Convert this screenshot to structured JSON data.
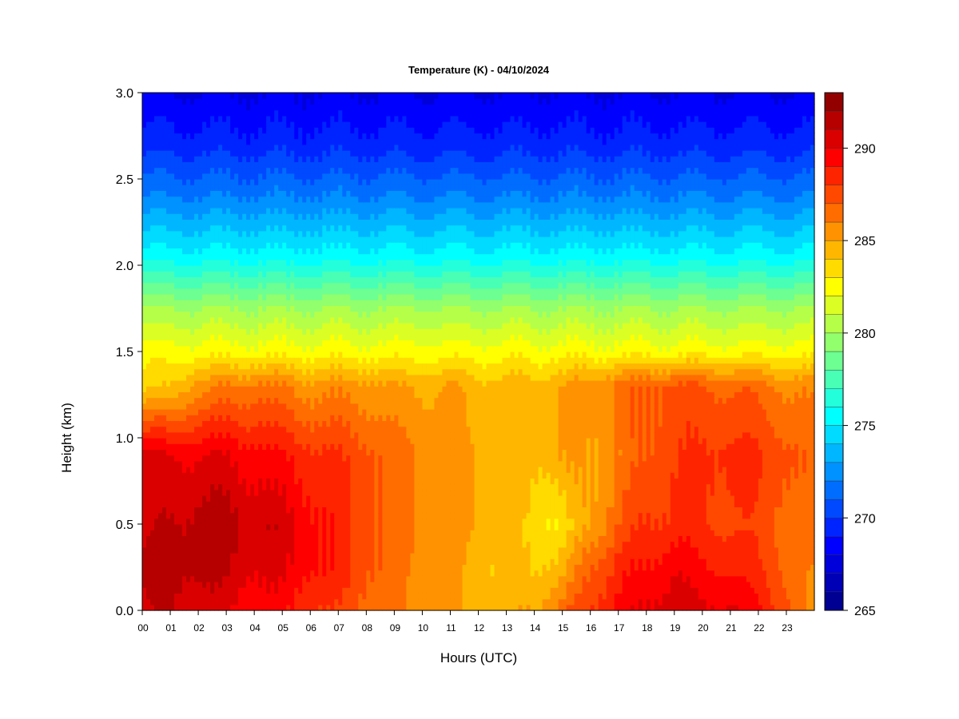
{
  "chart_data": {
    "type": "heatmap",
    "title": "Temperature (K) - 04/10/2024",
    "xlabel": "Hours (UTC)",
    "ylabel": "Height (km)",
    "xlim": [
      0,
      24
    ],
    "ylim": [
      0.0,
      3.0
    ],
    "x_ticks": [
      "00",
      "01",
      "02",
      "03",
      "04",
      "05",
      "06",
      "07",
      "08",
      "09",
      "10",
      "11",
      "12",
      "13",
      "14",
      "15",
      "16",
      "17",
      "18",
      "19",
      "20",
      "21",
      "22",
      "23"
    ],
    "y_ticks": [
      "0.0",
      "0.5",
      "1.0",
      "1.5",
      "2.0",
      "2.5",
      "3.0"
    ],
    "colorbar": {
      "min": 265,
      "max": 293,
      "levels": 28,
      "ticks": [
        265,
        270,
        275,
        280,
        285,
        290
      ],
      "tick_labels": [
        "265",
        "270",
        "275",
        "280",
        "285",
        "290"
      ]
    },
    "heights_km": [
      0.0,
      0.15,
      0.3,
      0.45,
      0.6,
      0.8,
      1.0,
      1.2,
      1.4,
      1.5,
      1.7,
      1.9,
      2.1,
      2.3,
      2.5,
      2.7,
      3.0
    ],
    "hours": [
      0,
      1,
      2,
      3,
      4,
      5,
      6,
      7,
      8,
      9,
      10,
      11,
      12,
      13,
      14,
      15,
      16,
      17,
      18,
      19,
      20,
      21,
      22,
      23,
      24
    ],
    "temperature_K": [
      [
        290.5,
        291.5,
        290.5,
        290.5,
        283.5
      ],
      [
        291.0,
        291.5,
        291.0,
        290.0,
        284.0
      ],
      [
        290.5,
        291.5,
        291.5,
        290.0,
        285.5
      ],
      [
        290.0,
        291.0,
        291.5,
        290.0,
        286.0
      ],
      [
        289.5,
        290.5,
        291.0,
        289.5,
        286.5
      ],
      [
        289.0,
        290.0,
        290.5,
        289.0,
        286.0
      ],
      [
        288.5,
        289.5,
        289.5,
        288.5,
        285.5
      ],
      [
        287.5,
        288.5,
        288.5,
        288.0,
        285.5
      ],
      [
        287.0,
        287.5,
        287.5,
        287.5,
        285.5
      ],
      [
        286.0,
        286.5,
        286.5,
        286.5,
        285.0
      ],
      [
        285.5,
        285.5,
        286.0,
        286.0,
        285.0
      ],
      [
        285.0,
        285.0,
        285.5,
        285.5,
        285.0
      ],
      [
        284.5,
        284.5,
        285.0,
        285.0,
        284.5
      ],
      [
        284.5,
        284.0,
        284.5,
        284.5,
        284.5
      ],
      [
        285.0,
        284.0,
        283.5,
        284.5,
        284.5
      ],
      [
        286.5,
        284.5,
        283.0,
        285.0,
        285.0
      ],
      [
        288.0,
        287.0,
        285.0,
        285.0,
        285.5
      ],
      [
        289.5,
        288.5,
        287.0,
        286.0,
        286.5
      ],
      [
        290.0,
        289.0,
        288.0,
        287.0,
        287.0
      ],
      [
        291.0,
        290.0,
        288.5,
        288.0,
        287.5
      ],
      [
        290.0,
        289.0,
        288.0,
        288.0,
        287.0
      ],
      [
        290.5,
        289.0,
        288.0,
        288.5,
        287.0
      ],
      [
        289.0,
        288.0,
        287.5,
        288.0,
        286.5
      ],
      [
        287.5,
        287.0,
        287.0,
        287.5,
        286.0
      ],
      [
        285.0,
        285.5,
        286.0,
        286.5,
        285.5
      ]
    ],
    "notes_hidden": false
  }
}
